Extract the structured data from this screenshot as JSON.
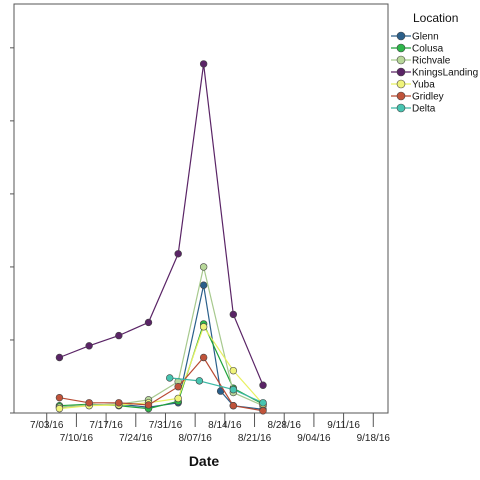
{
  "chart_data": {
    "type": "line",
    "title": "",
    "xlabel": "Date",
    "ylabel": "",
    "x_tick_labels": [
      "7/03/16",
      "7/10/16",
      "7/17/16",
      "7/24/16",
      "7/31/16",
      "8/07/16",
      "8/14/16",
      "8/21/16",
      "8/28/16",
      "9/04/16",
      "9/11/16",
      "9/18/16"
    ],
    "y_tick_labels": [
      "",
      "",
      "",
      "",
      "",
      ""
    ],
    "y_tick_values": [
      0,
      1,
      2,
      3,
      4,
      5
    ],
    "ylim": [
      0,
      5.6
    ],
    "xlim": [
      "2016-06-30",
      "2016-09-21"
    ],
    "grid": false,
    "legend_title": "Location",
    "legend_position": "right",
    "series": [
      {
        "name": "Glenn",
        "color": "#2a5f8a",
        "fill": "#2a5f8a",
        "points": [
          [
            "2016-07-06",
            0.08
          ],
          [
            "2016-07-13",
            0.11
          ],
          [
            "2016-07-20",
            0.12
          ],
          [
            "2016-07-27",
            0.08
          ],
          [
            "2016-08-03",
            0.14
          ],
          [
            "2016-08-09",
            1.75
          ],
          [
            "2016-08-13",
            0.3
          ],
          [
            "2016-08-16",
            0.1
          ],
          [
            "2016-08-23",
            0.05
          ]
        ]
      },
      {
        "name": "Colusa",
        "color": "#1fa23a",
        "fill": "#2db64a",
        "points": [
          [
            "2016-07-06",
            0.1
          ],
          [
            "2016-07-13",
            0.12
          ],
          [
            "2016-07-20",
            0.1
          ],
          [
            "2016-07-27",
            0.06
          ],
          [
            "2016-08-03",
            0.16
          ],
          [
            "2016-08-09",
            1.22
          ],
          [
            "2016-08-16",
            0.34
          ],
          [
            "2016-08-23",
            0.12
          ]
        ]
      },
      {
        "name": "Richvale",
        "color": "#a7c98e",
        "fill": "#b8d89a",
        "points": [
          [
            "2016-07-06",
            0.08
          ],
          [
            "2016-07-13",
            0.11
          ],
          [
            "2016-07-20",
            0.12
          ],
          [
            "2016-07-27",
            0.18
          ],
          [
            "2016-08-03",
            0.43
          ],
          [
            "2016-08-09",
            2.0
          ],
          [
            "2016-08-16",
            0.28
          ],
          [
            "2016-08-23",
            0.1
          ]
        ]
      },
      {
        "name": "KningsLanding",
        "color": "#5a2466",
        "fill": "#5a2466",
        "points": [
          [
            "2016-07-06",
            0.76
          ],
          [
            "2016-07-13",
            0.92
          ],
          [
            "2016-07-20",
            1.06
          ],
          [
            "2016-07-27",
            1.24
          ],
          [
            "2016-08-03",
            2.18
          ],
          [
            "2016-08-09",
            4.78
          ],
          [
            "2016-08-16",
            1.35
          ],
          [
            "2016-08-23",
            0.38
          ]
        ]
      },
      {
        "name": "Yuba",
        "color": "#e8f060",
        "fill": "#f0f47a",
        "points": [
          [
            "2016-07-06",
            0.06
          ],
          [
            "2016-07-13",
            0.1
          ],
          [
            "2016-07-20",
            0.11
          ],
          [
            "2016-07-27",
            0.14
          ],
          [
            "2016-08-03",
            0.2
          ],
          [
            "2016-08-09",
            1.18
          ],
          [
            "2016-08-16",
            0.58
          ],
          [
            "2016-08-23",
            0.12
          ]
        ]
      },
      {
        "name": "Gridley",
        "color": "#b84a32",
        "fill": "#c0533a",
        "points": [
          [
            "2016-07-06",
            0.21
          ],
          [
            "2016-07-13",
            0.14
          ],
          [
            "2016-07-20",
            0.14
          ],
          [
            "2016-07-27",
            0.11
          ],
          [
            "2016-08-03",
            0.36
          ],
          [
            "2016-08-09",
            0.76
          ],
          [
            "2016-08-16",
            0.1
          ],
          [
            "2016-08-23",
            0.03
          ]
        ]
      },
      {
        "name": "Delta",
        "color": "#3cb8a4",
        "fill": "#47c4b0",
        "points": [
          [
            "2016-08-01",
            0.48
          ],
          [
            "2016-08-08",
            0.44
          ],
          [
            "2016-08-16",
            0.32
          ],
          [
            "2016-08-23",
            0.14
          ]
        ]
      }
    ]
  }
}
